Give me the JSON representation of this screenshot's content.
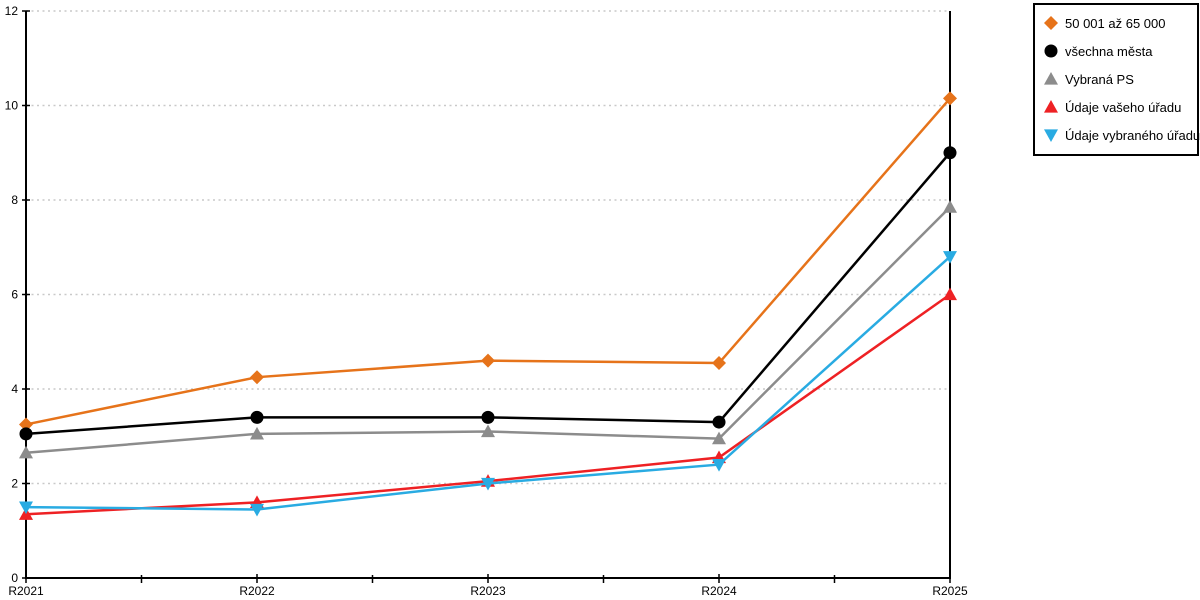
{
  "chart_data": {
    "type": "line",
    "title": "",
    "xlabel": "",
    "ylabel": "",
    "categories": [
      "R2021",
      "R2022",
      "R2023",
      "R2024",
      "R2025"
    ],
    "series": [
      {
        "name": "50 001 až 65 000",
        "color": "#E6731A",
        "marker": "diamond",
        "values": [
          3.25,
          4.25,
          4.6,
          4.55,
          10.15
        ]
      },
      {
        "name": "všechna města",
        "color": "#000000",
        "marker": "circle",
        "values": [
          3.05,
          3.4,
          3.4,
          3.3,
          9.0
        ]
      },
      {
        "name": "Vybraná PS",
        "color": "#8C8C8C",
        "marker": "triangle-up",
        "values": [
          2.65,
          3.05,
          3.1,
          2.95,
          7.85
        ]
      },
      {
        "name": "Údaje vašeho úřadu",
        "color": "#EE2124",
        "marker": "triangle-up",
        "values": [
          1.35,
          1.6,
          2.05,
          2.55,
          6.0
        ]
      },
      {
        "name": "Údaje vybraného úřadu",
        "color": "#29ABE2",
        "marker": "triangle-down",
        "values": [
          1.5,
          1.45,
          2.0,
          2.4,
          6.8
        ]
      }
    ],
    "ylim": [
      0,
      12
    ],
    "ytick_step": 2,
    "y_tick_labels": [
      "0",
      "2",
      "4",
      "6",
      "8",
      "10",
      "12"
    ],
    "grid": "dotted-horizontal",
    "gridline_color": "#C9C9C9",
    "axis_color": "#000000",
    "legend_position": "outside-top-right",
    "minor_x_ticks_between_categories": true
  }
}
